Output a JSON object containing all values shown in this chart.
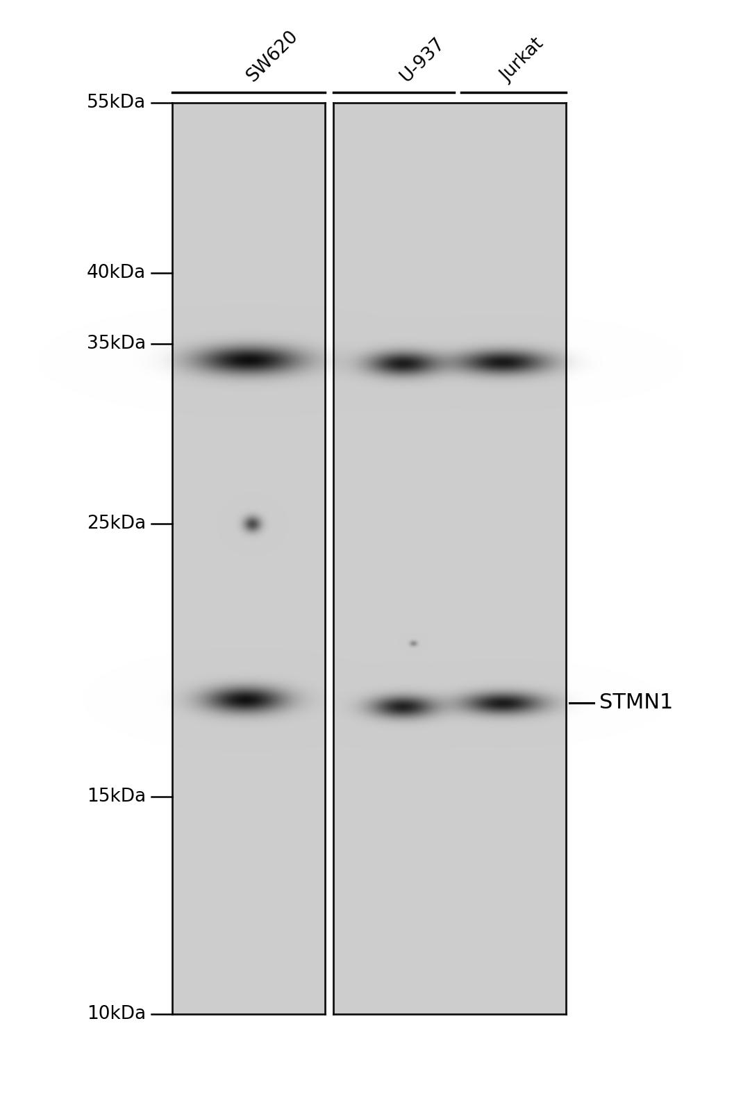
{
  "background_color": "#ffffff",
  "gel_bg_light": 210,
  "gel_bg_dark": 185,
  "border_color": "#111111",
  "sample_labels": [
    "SW620",
    "U-937",
    "Jurkat"
  ],
  "mw_markers": [
    "55kDa",
    "40kDa",
    "35kDa",
    "25kDa",
    "15kDa",
    "10kDa"
  ],
  "mw_values": [
    55,
    40,
    35,
    25,
    15,
    10
  ],
  "annotation": "STMN1",
  "figure_width": 10.8,
  "figure_height": 15.88,
  "dpi": 100
}
